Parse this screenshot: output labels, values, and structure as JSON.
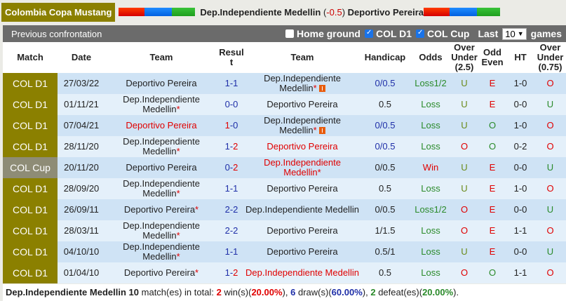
{
  "header": {
    "league": "Colombia Copa Mustang",
    "home_team": "Dep.Independiente Medellin",
    "handicap": "-0.5",
    "away_team": "Deportivo Pereira"
  },
  "panel": {
    "title": "Previous confrontation",
    "home_ground_label": "Home ground",
    "home_ground_checked": false,
    "filter1_label": "COL D1",
    "filter1_checked": true,
    "filter2_label": "COL Cup",
    "filter2_checked": true,
    "last_label": "Last",
    "last_value": "10",
    "games_label": "games"
  },
  "columns": [
    "Match",
    "Date",
    "Team",
    "Result",
    "Team",
    "Handicap",
    "Odds",
    "Over Under (2.5)",
    "Odd Even",
    "HT",
    "Over Under (0.75)"
  ],
  "rows": [
    {
      "match": "COL D1",
      "date": "27/03/22",
      "home": "Deportivo Pereira",
      "home_color": "",
      "home_star": false,
      "r1": "1",
      "r2": "1",
      "r1c": "blue",
      "r2c": "blue",
      "away": "Dep.Independiente Medellin",
      "away_color": "",
      "away_star": true,
      "away_flag": true,
      "handicap": "0/0.5",
      "hc": "dblue",
      "odds": "Loss1/2",
      "oc": "green",
      "ou": "U",
      "ouc": "olive",
      "oe": "E",
      "oec": "red",
      "ht": "1-0",
      "ou2": "O",
      "ou2c": "red"
    },
    {
      "match": "COL D1",
      "date": "01/11/21",
      "home": "Dep.Independiente Medellin",
      "home_color": "",
      "home_star": true,
      "r1": "0",
      "r2": "0",
      "r1c": "blue",
      "r2c": "blue",
      "away": "Deportivo Pereira",
      "away_color": "",
      "away_star": false,
      "away_flag": false,
      "handicap": "0.5",
      "hc": "",
      "odds": "Loss",
      "oc": "green",
      "ou": "U",
      "ouc": "olive",
      "oe": "E",
      "oec": "red",
      "ht": "0-0",
      "ou2": "U",
      "ou2c": "green"
    },
    {
      "match": "COL D1",
      "date": "07/04/21",
      "home": "Deportivo Pereira",
      "home_color": "red",
      "home_star": false,
      "r1": "1",
      "r2": "0",
      "r1c": "red",
      "r2c": "blue",
      "away": "Dep.Independiente Medellin",
      "away_color": "",
      "away_star": true,
      "away_flag": true,
      "handicap": "0/0.5",
      "hc": "dblue",
      "odds": "Loss",
      "oc": "green",
      "ou": "U",
      "ouc": "olive",
      "oe": "O",
      "oec": "green",
      "ht": "1-0",
      "ou2": "O",
      "ou2c": "red"
    },
    {
      "match": "COL D1",
      "date": "28/11/20",
      "home": "Dep.Independiente Medellin",
      "home_color": "",
      "home_star": true,
      "r1": "1",
      "r2": "2",
      "r1c": "blue",
      "r2c": "red",
      "away": "Deportivo Pereira",
      "away_color": "red",
      "away_star": false,
      "away_flag": false,
      "handicap": "0/0.5",
      "hc": "dblue",
      "odds": "Loss",
      "oc": "green",
      "ou": "O",
      "ouc": "red",
      "oe": "O",
      "oec": "green",
      "ht": "0-2",
      "ou2": "O",
      "ou2c": "red"
    },
    {
      "match": "COL Cup",
      "date": "20/11/20",
      "home": "Deportivo Pereira",
      "home_color": "",
      "home_star": false,
      "r1": "0",
      "r2": "2",
      "r1c": "blue",
      "r2c": "red",
      "away": "Dep.Independiente Medellin",
      "away_color": "red",
      "away_star": true,
      "away_flag": false,
      "handicap": "0/0.5",
      "hc": "",
      "odds": "Win",
      "oc": "red",
      "ou": "U",
      "ouc": "olive",
      "oe": "E",
      "oec": "red",
      "ht": "0-0",
      "ou2": "U",
      "ou2c": "green"
    },
    {
      "match": "COL D1",
      "date": "28/09/20",
      "home": "Dep.Independiente Medellin",
      "home_color": "",
      "home_star": true,
      "r1": "1",
      "r2": "1",
      "r1c": "blue",
      "r2c": "blue",
      "away": "Deportivo Pereira",
      "away_color": "",
      "away_star": false,
      "away_flag": false,
      "handicap": "0.5",
      "hc": "",
      "odds": "Loss",
      "oc": "green",
      "ou": "U",
      "ouc": "olive",
      "oe": "E",
      "oec": "red",
      "ht": "1-0",
      "ou2": "O",
      "ou2c": "red"
    },
    {
      "match": "COL D1",
      "date": "26/09/11",
      "home": "Deportivo Pereira",
      "home_color": "",
      "home_star": true,
      "r1": "2",
      "r2": "2",
      "r1c": "blue",
      "r2c": "blue",
      "away": "Dep.Independiente Medellin",
      "away_color": "",
      "away_star": false,
      "away_flag": false,
      "handicap": "0/0.5",
      "hc": "",
      "odds": "Loss1/2",
      "oc": "green",
      "ou": "O",
      "ouc": "red",
      "oe": "E",
      "oec": "red",
      "ht": "0-0",
      "ou2": "U",
      "ou2c": "green"
    },
    {
      "match": "COL D1",
      "date": "28/03/11",
      "home": "Dep.Independiente Medellin",
      "home_color": "",
      "home_star": true,
      "r1": "2",
      "r2": "2",
      "r1c": "blue",
      "r2c": "blue",
      "away": "Deportivo Pereira",
      "away_color": "",
      "away_star": false,
      "away_flag": false,
      "handicap": "1/1.5",
      "hc": "",
      "odds": "Loss",
      "oc": "green",
      "ou": "O",
      "ouc": "red",
      "oe": "E",
      "oec": "red",
      "ht": "1-1",
      "ou2": "O",
      "ou2c": "red"
    },
    {
      "match": "COL D1",
      "date": "04/10/10",
      "home": "Dep.Independiente Medellin",
      "home_color": "",
      "home_star": true,
      "r1": "1",
      "r2": "1",
      "r1c": "blue",
      "r2c": "blue",
      "away": "Deportivo Pereira",
      "away_color": "",
      "away_star": false,
      "away_flag": false,
      "handicap": "0.5/1",
      "hc": "",
      "odds": "Loss",
      "oc": "green",
      "ou": "U",
      "ouc": "olive",
      "oe": "E",
      "oec": "red",
      "ht": "0-0",
      "ou2": "U",
      "ou2c": "green"
    },
    {
      "match": "COL D1",
      "date": "01/04/10",
      "home": "Deportivo Pereira",
      "home_color": "",
      "home_star": true,
      "r1": "1",
      "r2": "2",
      "r1c": "blue",
      "r2c": "red",
      "away": "Dep.Independiente Medellin",
      "away_color": "red",
      "away_star": false,
      "away_flag": false,
      "handicap": "0.5",
      "hc": "",
      "odds": "Loss",
      "oc": "green",
      "ou": "O",
      "ouc": "red",
      "oe": "O",
      "oec": "green",
      "ht": "1-1",
      "ou2": "O",
      "ou2c": "red"
    }
  ],
  "summary": {
    "team": "Dep.Independiente Medellin",
    "total": "10",
    "total_text": "match(es) in total:",
    "wins": "2",
    "wins_text": "win(s)(",
    "wins_pct": "20.00%",
    "draws": "6",
    "draws_text": "draw(s)(",
    "draws_pct": "60.00%",
    "defeats": "2",
    "defeats_text": "defeat(es)(",
    "defeats_pct": "20.00%"
  },
  "colors": {
    "league_bg": "#8b8000",
    "cup_bg": "#8e8c76",
    "panel_bg": "#6b6b6b",
    "row_a": "#cfe3f5",
    "row_b": "#e4f0fa",
    "red": "#e00000",
    "blue": "#1f2fa8",
    "green": "#2a8a2a"
  }
}
